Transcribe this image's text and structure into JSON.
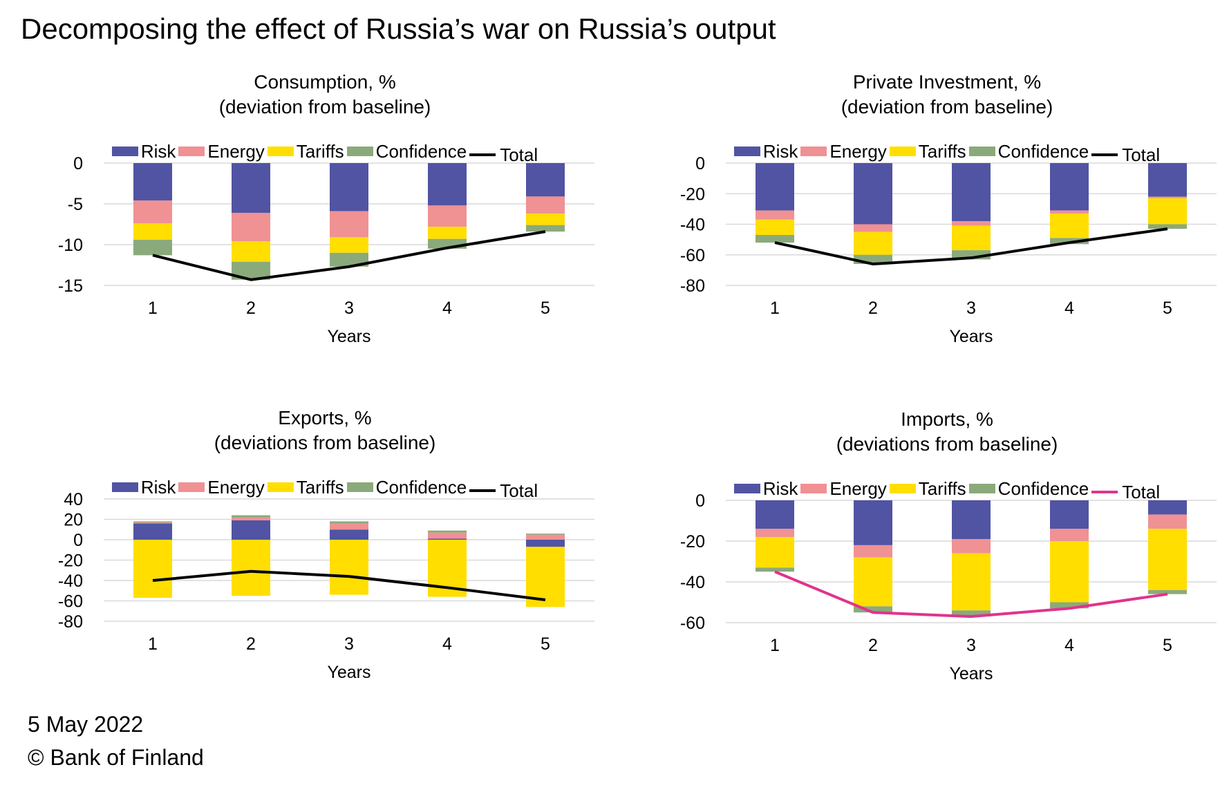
{
  "title": "Decomposing the effect of Russia’s war on Russia’s output",
  "footer": {
    "date": "5 May 2022",
    "source": "© Bank of Finland"
  },
  "colors": {
    "Risk": "#5054A3",
    "Energy": "#F09194",
    "Tariffs": "#FFDE00",
    "Confidence": "#8BAA7B",
    "TotalBlack": "#000000",
    "TotalPink": "#E0338F"
  },
  "chart_data": [
    {
      "type": "bar",
      "stacked": true,
      "title": "Consumption, %",
      "subtitle": "(deviation from baseline)",
      "xlabel": "Years",
      "ylabel": "",
      "categories": [
        "1",
        "2",
        "3",
        "4",
        "5"
      ],
      "ylim": [
        -15,
        0
      ],
      "yticks": [
        0,
        -5,
        -10,
        -15
      ],
      "grid": true,
      "legend": "top",
      "legend_labels": {
        "Risk": "Risk",
        "Energy": "Energy",
        "Tariffs": "Tariffs",
        "Confidence": "Confidence",
        "Total": "Total"
      },
      "series": [
        {
          "name": "Risk",
          "values": [
            -4.6,
            -6.1,
            -5.9,
            -5.2,
            -4.1
          ]
        },
        {
          "name": "Energy",
          "values": [
            -2.8,
            -3.5,
            -3.2,
            -2.6,
            -2.1
          ]
        },
        {
          "name": "Tariffs",
          "values": [
            -2.0,
            -2.5,
            -1.9,
            -1.5,
            -1.4
          ]
        },
        {
          "name": "Confidence",
          "values": [
            -1.9,
            -2.2,
            -1.7,
            -1.2,
            -0.8
          ]
        }
      ],
      "total": {
        "name": "Total",
        "values": [
          -11.3,
          -14.3,
          -12.7,
          -10.4,
          -8.4
        ],
        "color": "#000000"
      }
    },
    {
      "type": "bar",
      "stacked": true,
      "title": "Private Investment, %",
      "subtitle": "(deviation from baseline)",
      "xlabel": "Years",
      "ylabel": "",
      "categories": [
        "1",
        "2",
        "3",
        "4",
        "5"
      ],
      "ylim": [
        -80,
        0
      ],
      "yticks": [
        0,
        -20,
        -40,
        -60,
        -80
      ],
      "grid": true,
      "legend": "top",
      "legend_labels": {
        "Risk": "Risk",
        "Energy": "Energy",
        "Tariffs": "Tariffs",
        "Confidence": "Confidence",
        "Total": "Total"
      },
      "series": [
        {
          "name": "Risk",
          "values": [
            -31,
            -40,
            -38,
            -31,
            -22
          ]
        },
        {
          "name": "Energy",
          "values": [
            -6,
            -5,
            -3,
            -2,
            -1
          ]
        },
        {
          "name": "Tariffs",
          "values": [
            -10,
            -15,
            -16,
            -16,
            -17
          ]
        },
        {
          "name": "Confidence",
          "values": [
            -5,
            -6,
            -6,
            -4,
            -3
          ]
        }
      ],
      "total": {
        "name": "Total",
        "values": [
          -52,
          -66,
          -62,
          -52,
          -43
        ],
        "color": "#000000"
      }
    },
    {
      "type": "bar",
      "stacked": true,
      "title": "Exports, %",
      "subtitle": "(deviations from baseline)",
      "xlabel": "Years",
      "ylabel": "",
      "categories": [
        "1",
        "2",
        "3",
        "4",
        "5"
      ],
      "ylim": [
        -80,
        40
      ],
      "yticks": [
        40,
        20,
        0,
        -20,
        -40,
        -60,
        -80
      ],
      "grid": true,
      "legend": "top",
      "legend_labels": {
        "Risk": "Risk",
        "Energy": "Energy",
        "Tariffs": "Tariffs",
        "Confidence": "Confidence",
        "Total": "Total"
      },
      "series": [
        {
          "name": "Risk",
          "values": [
            16,
            19,
            10,
            1,
            -7
          ]
        },
        {
          "name": "Energy",
          "values": [
            1,
            3,
            6,
            6,
            5
          ]
        },
        {
          "name": "Tariffs",
          "values": [
            -57,
            -55,
            -54,
            -56,
            -59
          ]
        },
        {
          "name": "Confidence",
          "values": [
            1,
            2,
            2,
            2,
            1
          ]
        }
      ],
      "total": {
        "name": "Total",
        "values": [
          -40,
          -31,
          -36,
          -47,
          -59
        ],
        "color": "#000000"
      }
    },
    {
      "type": "bar",
      "stacked": true,
      "title": "Imports, %",
      "subtitle": "(deviations from baseline)",
      "xlabel": "Years",
      "ylabel": "",
      "categories": [
        "1",
        "2",
        "3",
        "4",
        "5"
      ],
      "ylim": [
        -60,
        0
      ],
      "yticks": [
        0,
        -20,
        -40,
        -60
      ],
      "grid": true,
      "legend": "top",
      "legend_labels": {
        "Risk": "Risk",
        "Energy": "Energy",
        "Tariffs": "Tariffs",
        "Confidence": "Confidence",
        "Total": "Total"
      },
      "series": [
        {
          "name": "Risk",
          "values": [
            -14,
            -22,
            -19,
            -14,
            -7
          ]
        },
        {
          "name": "Energy",
          "values": [
            -4,
            -6,
            -7,
            -6,
            -7
          ]
        },
        {
          "name": "Tariffs",
          "values": [
            -15,
            -24,
            -28,
            -30,
            -30
          ]
        },
        {
          "name": "Confidence",
          "values": [
            -2,
            -3,
            -3,
            -3,
            -2
          ]
        }
      ],
      "total": {
        "name": "Total",
        "values": [
          -35,
          -55,
          -57,
          -53,
          -46
        ],
        "color": "#E0338F"
      }
    }
  ]
}
